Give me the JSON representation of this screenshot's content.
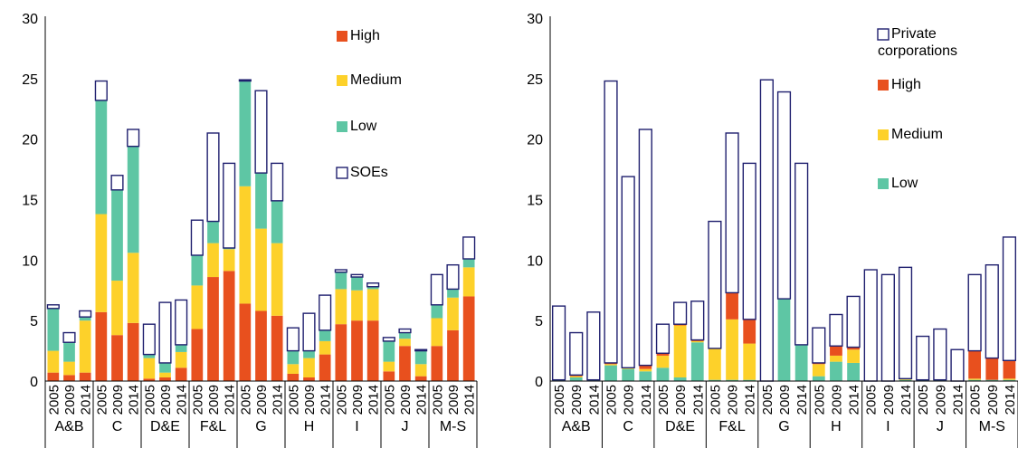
{
  "colors": {
    "high": "#e8501e",
    "medium": "#fdd12a",
    "low": "#5ec6a4",
    "outline": "#1f1f6e"
  },
  "chart_data": [
    {
      "type": "bar",
      "stacked": true,
      "title": "",
      "xlabel": "",
      "ylabel": "",
      "ylim": [
        0,
        30
      ],
      "yticks": [
        "0",
        "5",
        "10",
        "15",
        "20",
        "25",
        "30"
      ],
      "groups": [
        "A&B",
        "C",
        "D&E",
        "F&L",
        "G",
        "H",
        "I",
        "J",
        "M-S"
      ],
      "years": [
        "2005",
        "2009",
        "2014"
      ],
      "legend_position": "top-right",
      "series": [
        {
          "name": "High",
          "key": "high",
          "fill": true,
          "values": [
            0.7,
            0.5,
            0.7,
            5.7,
            3.8,
            4.8,
            0.2,
            0.3,
            1.1,
            4.3,
            8.6,
            9.1,
            6.4,
            5.8,
            5.4,
            0.6,
            0.3,
            2.2,
            4.7,
            5.0,
            5.0,
            0.8,
            2.9,
            0.4,
            2.9,
            4.2,
            7.0
          ]
        },
        {
          "name": "Medium",
          "key": "medium",
          "fill": true,
          "values": [
            1.8,
            1.1,
            4.3,
            8.1,
            4.5,
            5.8,
            1.7,
            0.4,
            1.3,
            3.6,
            2.8,
            1.8,
            9.7,
            6.8,
            6.0,
            0.8,
            1.6,
            1.1,
            2.9,
            2.5,
            2.6,
            0.8,
            0.6,
            1.0,
            2.3,
            2.7,
            2.4
          ]
        },
        {
          "name": "Low",
          "key": "low",
          "fill": true,
          "values": [
            3.5,
            1.6,
            0.3,
            9.4,
            7.5,
            8.8,
            0.3,
            0.8,
            0.6,
            2.5,
            1.8,
            0.1,
            8.7,
            4.6,
            3.5,
            1.1,
            0.6,
            0.9,
            1.4,
            1.1,
            0.2,
            1.7,
            0.5,
            1.1,
            1.1,
            0.7,
            0.7
          ]
        },
        {
          "name": "SOEs",
          "key": "outline",
          "fill": false,
          "values": [
            0.3,
            0.8,
            0.5,
            1.6,
            1.2,
            1.4,
            2.5,
            5.0,
            3.7,
            2.9,
            7.3,
            7.0,
            0.1,
            6.8,
            3.1,
            1.9,
            3.1,
            2.9,
            0.2,
            0.2,
            0.3,
            0.3,
            0.3,
            0.1,
            2.5,
            2.0,
            1.8
          ]
        }
      ]
    },
    {
      "type": "bar",
      "stacked": true,
      "title": "",
      "xlabel": "",
      "ylabel": "",
      "ylim": [
        0,
        30
      ],
      "yticks": [
        "0",
        "5",
        "10",
        "15",
        "20",
        "25",
        "30"
      ],
      "groups": [
        "A&B",
        "C",
        "D&E",
        "F&L",
        "G",
        "H",
        "I",
        "J",
        "M-S"
      ],
      "years": [
        "2005",
        "2009",
        "2014"
      ],
      "legend_position": "top-right",
      "series": [
        {
          "name": "Low",
          "key": "low",
          "fill": true,
          "values": [
            0.1,
            0.3,
            0.1,
            1.3,
            1.0,
            0.8,
            1.1,
            0.3,
            3.2,
            0.1,
            0.1,
            0.1,
            0.0,
            6.8,
            3.0,
            0.4,
            1.6,
            1.5,
            0.0,
            0.0,
            0.1,
            0.1,
            0.1,
            0.0,
            0.1,
            0.1,
            0.1
          ]
        },
        {
          "name": "Medium",
          "key": "medium",
          "fill": true,
          "values": [
            0.0,
            0.1,
            0.0,
            0.1,
            0.1,
            0.2,
            1.0,
            4.3,
            0.1,
            2.6,
            5.0,
            3.0,
            0.0,
            0.0,
            0.0,
            1.0,
            0.5,
            1.1,
            0.0,
            0.0,
            0.1,
            0.0,
            0.0,
            0.0,
            0.1,
            0.0,
            0.1
          ]
        },
        {
          "name": "High",
          "key": "high",
          "fill": true,
          "values": [
            0.0,
            0.1,
            0.0,
            0.1,
            0.0,
            0.3,
            0.2,
            0.1,
            0.1,
            0.0,
            2.2,
            2.0,
            0.0,
            0.0,
            0.0,
            0.1,
            0.8,
            0.2,
            0.0,
            0.0,
            0.0,
            0.0,
            0.0,
            0.0,
            2.3,
            1.8,
            1.5
          ]
        },
        {
          "name": "Private corporations",
          "key": "outline",
          "fill": false,
          "values": [
            6.1,
            3.5,
            5.6,
            23.3,
            15.8,
            19.5,
            2.4,
            1.8,
            3.2,
            10.5,
            13.2,
            12.9,
            24.9,
            17.1,
            15.0,
            2.9,
            2.6,
            4.2,
            9.2,
            8.8,
            9.2,
            3.6,
            4.2,
            2.6,
            6.3,
            7.7,
            10.2
          ]
        }
      ]
    }
  ]
}
